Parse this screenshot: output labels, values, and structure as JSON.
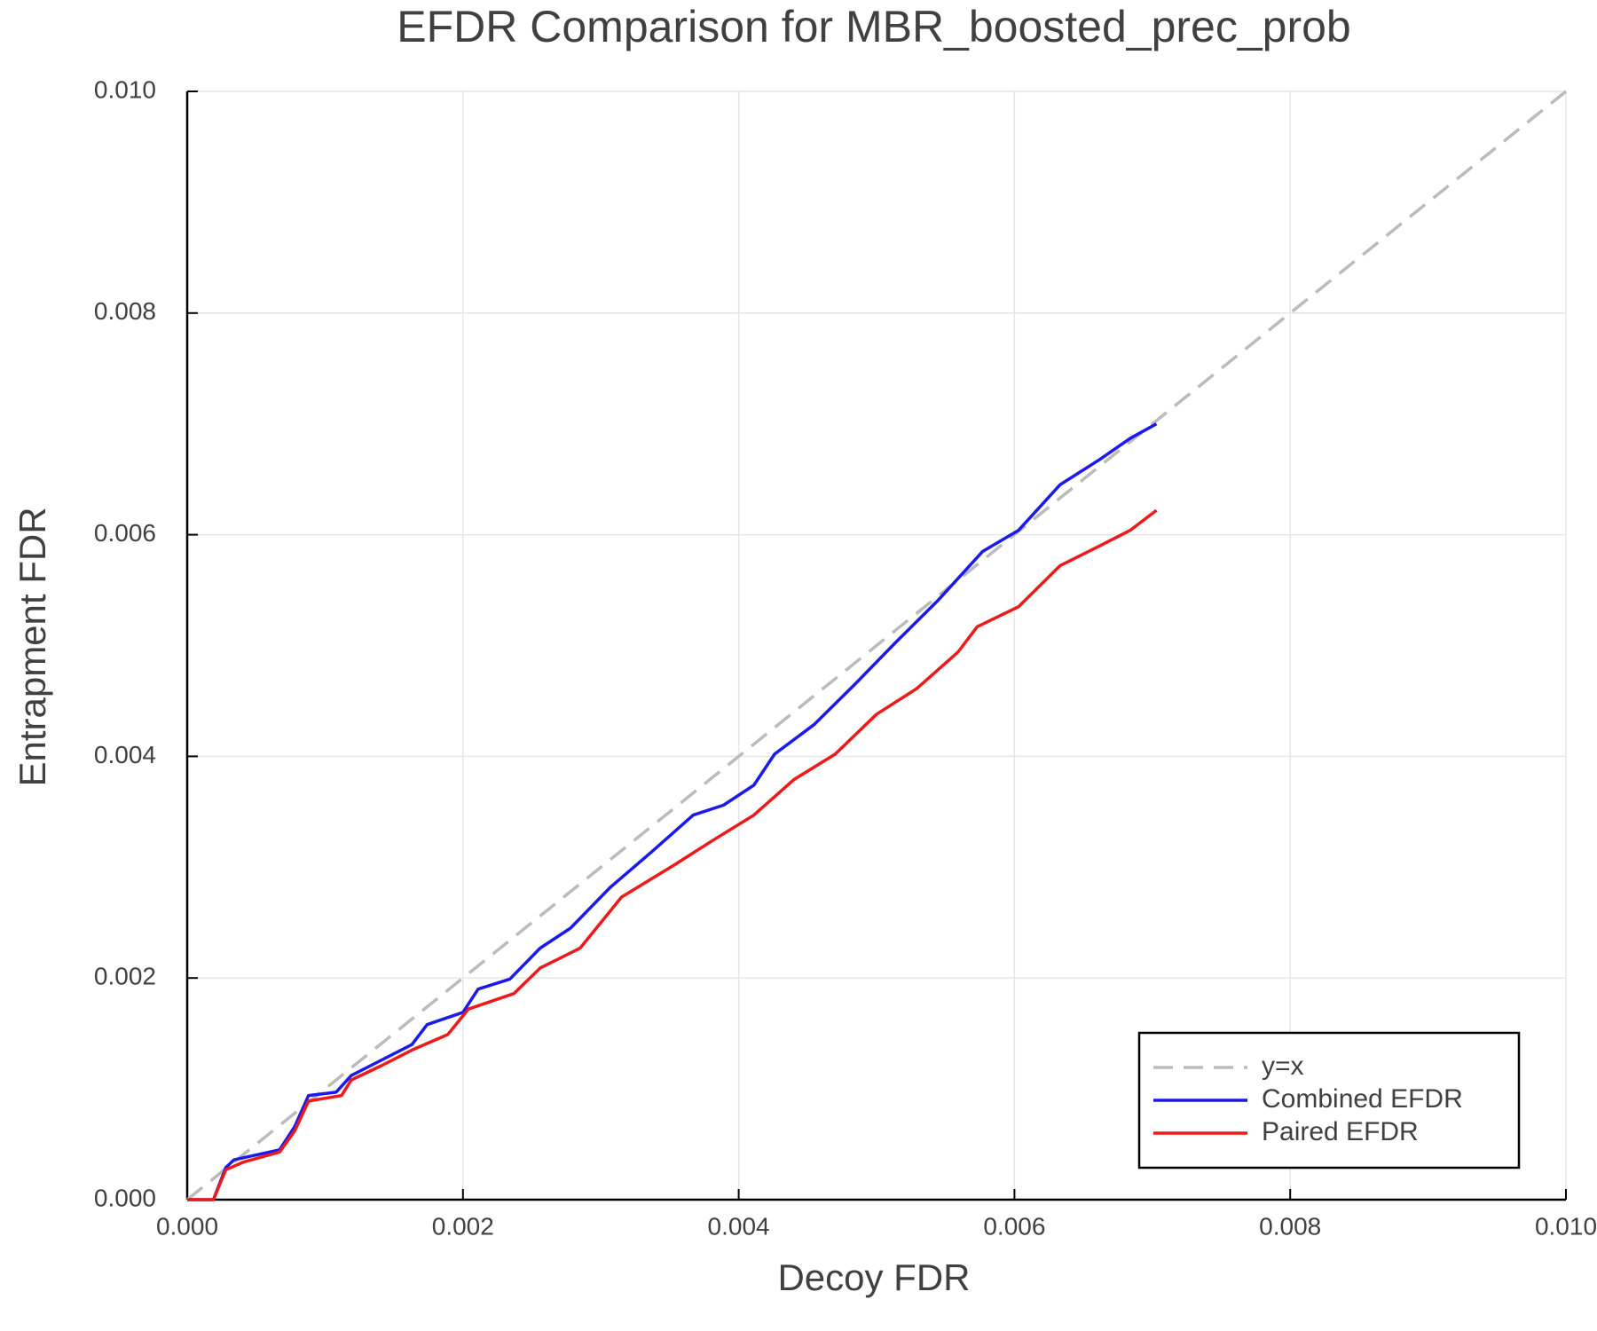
{
  "chart_data": {
    "type": "line",
    "title": "EFDR Comparison for MBR_boosted_prec_prob",
    "x_label": "Decoy FDR",
    "y_label": "Entrapment FDR",
    "xlim": [
      0,
      0.01
    ],
    "ylim": [
      0,
      0.01
    ],
    "xticks": [
      {
        "value": 0,
        "label": "0.000"
      },
      0.002,
      0.004,
      0.006,
      0.008,
      {
        "value": 0.01,
        "label": "0.010"
      }
    ],
    "yticks": [
      {
        "value": 0,
        "label": "0.000"
      },
      0.002,
      0.004,
      0.006,
      0.008,
      {
        "value": 0.01,
        "label": "0.010"
      }
    ],
    "grid": true,
    "legend": "bottom-right",
    "series": [
      {
        "name": "y=x",
        "color": "#bbbbbb",
        "dashed": true,
        "x": [
          0,
          0.01
        ],
        "values": [
          0,
          0.01
        ]
      },
      {
        "name": "Combined EFDR",
        "color": "#1a1aee",
        "x": [
          0,
          0.00019,
          0.00028,
          0.00034,
          0.00045,
          0.00067,
          0.00078,
          0.00088,
          0.00108,
          0.00119,
          0.00141,
          0.00163,
          0.00174,
          0.002,
          0.00211,
          0.00234,
          0.00256,
          0.00278,
          0.00307,
          0.00337,
          0.00367,
          0.00389,
          0.00411,
          0.00426,
          0.00455,
          0.00485,
          0.00514,
          0.00544,
          0.00577,
          0.00603,
          0.00633,
          0.00662,
          0.00684,
          0.00703
        ],
        "values": [
          0,
          0,
          0.00029,
          0.00036,
          0.00039,
          0.00045,
          0.00066,
          0.00094,
          0.00097,
          0.00112,
          0.00126,
          0.0014,
          0.00158,
          0.00169,
          0.0019,
          0.00199,
          0.00227,
          0.00245,
          0.00282,
          0.00314,
          0.00347,
          0.00356,
          0.00374,
          0.00402,
          0.00429,
          0.00466,
          0.00503,
          0.0054,
          0.00585,
          0.00604,
          0.00645,
          0.00668,
          0.00687,
          0.007
        ]
      },
      {
        "name": "Paired EFDR",
        "color": "#ee1a1a",
        "x": [
          0,
          0.00019,
          0.00028,
          0.00041,
          0.00067,
          0.00078,
          0.00088,
          0.00112,
          0.00119,
          0.00141,
          0.00163,
          0.00189,
          0.00204,
          0.00237,
          0.00256,
          0.00285,
          0.00315,
          0.00352,
          0.00381,
          0.00411,
          0.0044,
          0.0047,
          0.005,
          0.00529,
          0.00559,
          0.00573,
          0.00603,
          0.00633,
          0.00662,
          0.00684,
          0.00703
        ],
        "values": [
          0,
          0,
          0.00027,
          0.00034,
          0.00043,
          0.00062,
          0.00089,
          0.00094,
          0.00108,
          0.00121,
          0.00135,
          0.00149,
          0.00172,
          0.00186,
          0.00209,
          0.00227,
          0.00273,
          0.00301,
          0.00324,
          0.00347,
          0.00379,
          0.00402,
          0.00438,
          0.00461,
          0.00494,
          0.00517,
          0.00535,
          0.00572,
          0.0059,
          0.00604,
          0.00622
        ]
      }
    ]
  }
}
